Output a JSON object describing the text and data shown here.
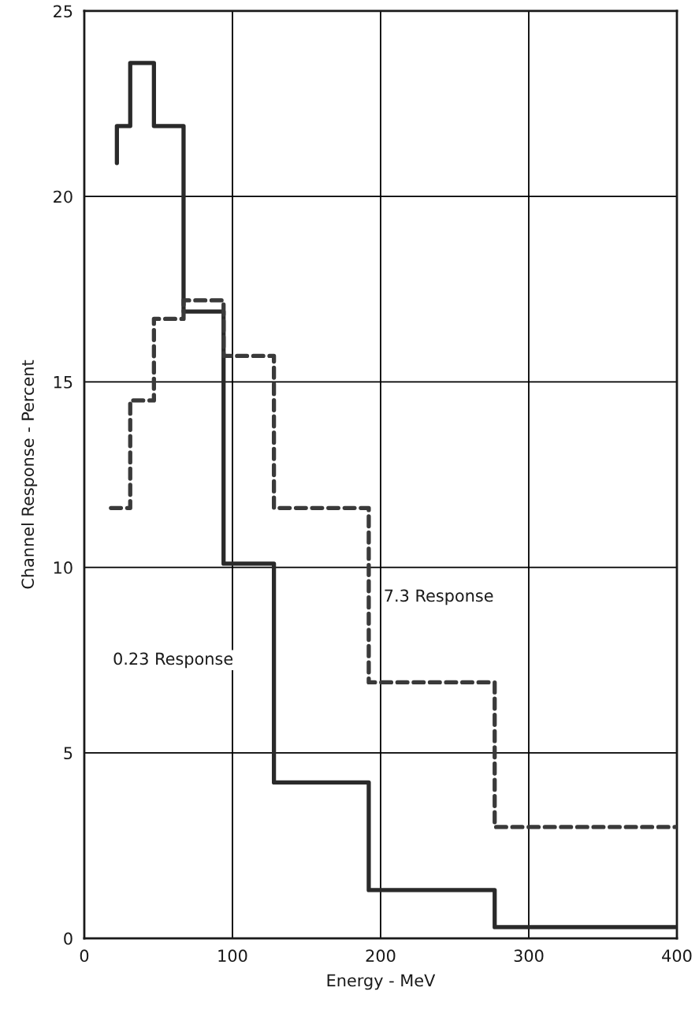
{
  "chart_data": {
    "type": "step",
    "xlabel": "Energy - MeV",
    "ylabel": "Channel Response - Percent",
    "xlim": [
      0,
      400
    ],
    "xticks": [
      0,
      100,
      200,
      300,
      400
    ],
    "ylim": [
      0,
      25
    ],
    "yticks": [
      0,
      5,
      10,
      15,
      20,
      25
    ],
    "grid": true,
    "series": [
      {
        "name": "0.23 Response",
        "color": "#2a2a2a",
        "line_style": "solid",
        "x": [
          22,
          22,
          31,
          47,
          67,
          94,
          128,
          192,
          277,
          400
        ],
        "values": [
          20.9,
          21.9,
          23.6,
          21.9,
          16.9,
          10.1,
          4.2,
          1.3,
          0.3,
          0.3
        ]
      },
      {
        "name": "7.3 Response",
        "color": "#3a3a3a",
        "line_style": "dashed",
        "x": [
          18,
          31,
          47,
          67,
          94,
          128,
          192,
          277,
          400
        ],
        "values": [
          11.6,
          14.5,
          16.7,
          17.2,
          15.7,
          11.6,
          6.9,
          3.0,
          3.0
        ]
      }
    ]
  }
}
